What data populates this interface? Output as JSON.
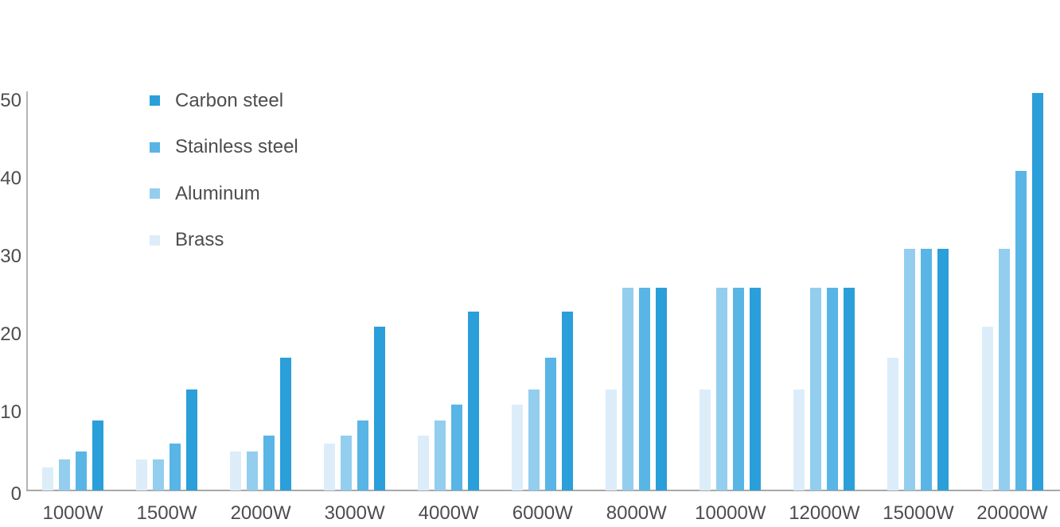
{
  "chart_data": {
    "type": "bar",
    "title": "",
    "xlabel": "",
    "ylabel": "",
    "categories": [
      "1000W",
      "1500W",
      "2000W",
      "3000W",
      "4000W",
      "6000W",
      "8000W",
      "10000W",
      "12000W",
      "15000W",
      "20000W"
    ],
    "series": [
      {
        "name": "Carbon steel",
        "color": "#2b9fd9",
        "values": [
          9,
          13,
          17,
          21,
          23,
          23,
          26,
          26,
          26,
          31,
          51
        ]
      },
      {
        "name": "Stainless steel",
        "color": "#58b5e5",
        "values": [
          5,
          6,
          7,
          9,
          11,
          17,
          26,
          26,
          26,
          31,
          41
        ]
      },
      {
        "name": "Aluminum",
        "color": "#93ceee",
        "values": [
          4,
          4,
          5,
          7,
          9,
          13,
          26,
          26,
          26,
          31,
          31
        ]
      },
      {
        "name": "Brass",
        "color": "#dcedf9",
        "values": [
          3,
          4,
          5,
          6,
          7,
          11,
          13,
          13,
          13,
          17,
          21
        ]
      }
    ],
    "bar_order_in_group_left_to_right": [
      "Brass",
      "Aluminum",
      "Stainless steel",
      "Carbon steel"
    ],
    "y_ticks": [
      0,
      10,
      20,
      30,
      40,
      50
    ],
    "ylim": [
      0,
      52
    ],
    "grid": false,
    "legend_position": "top-left",
    "axis_color": "#a8a8a8",
    "text_color": "#4d4d4d"
  }
}
